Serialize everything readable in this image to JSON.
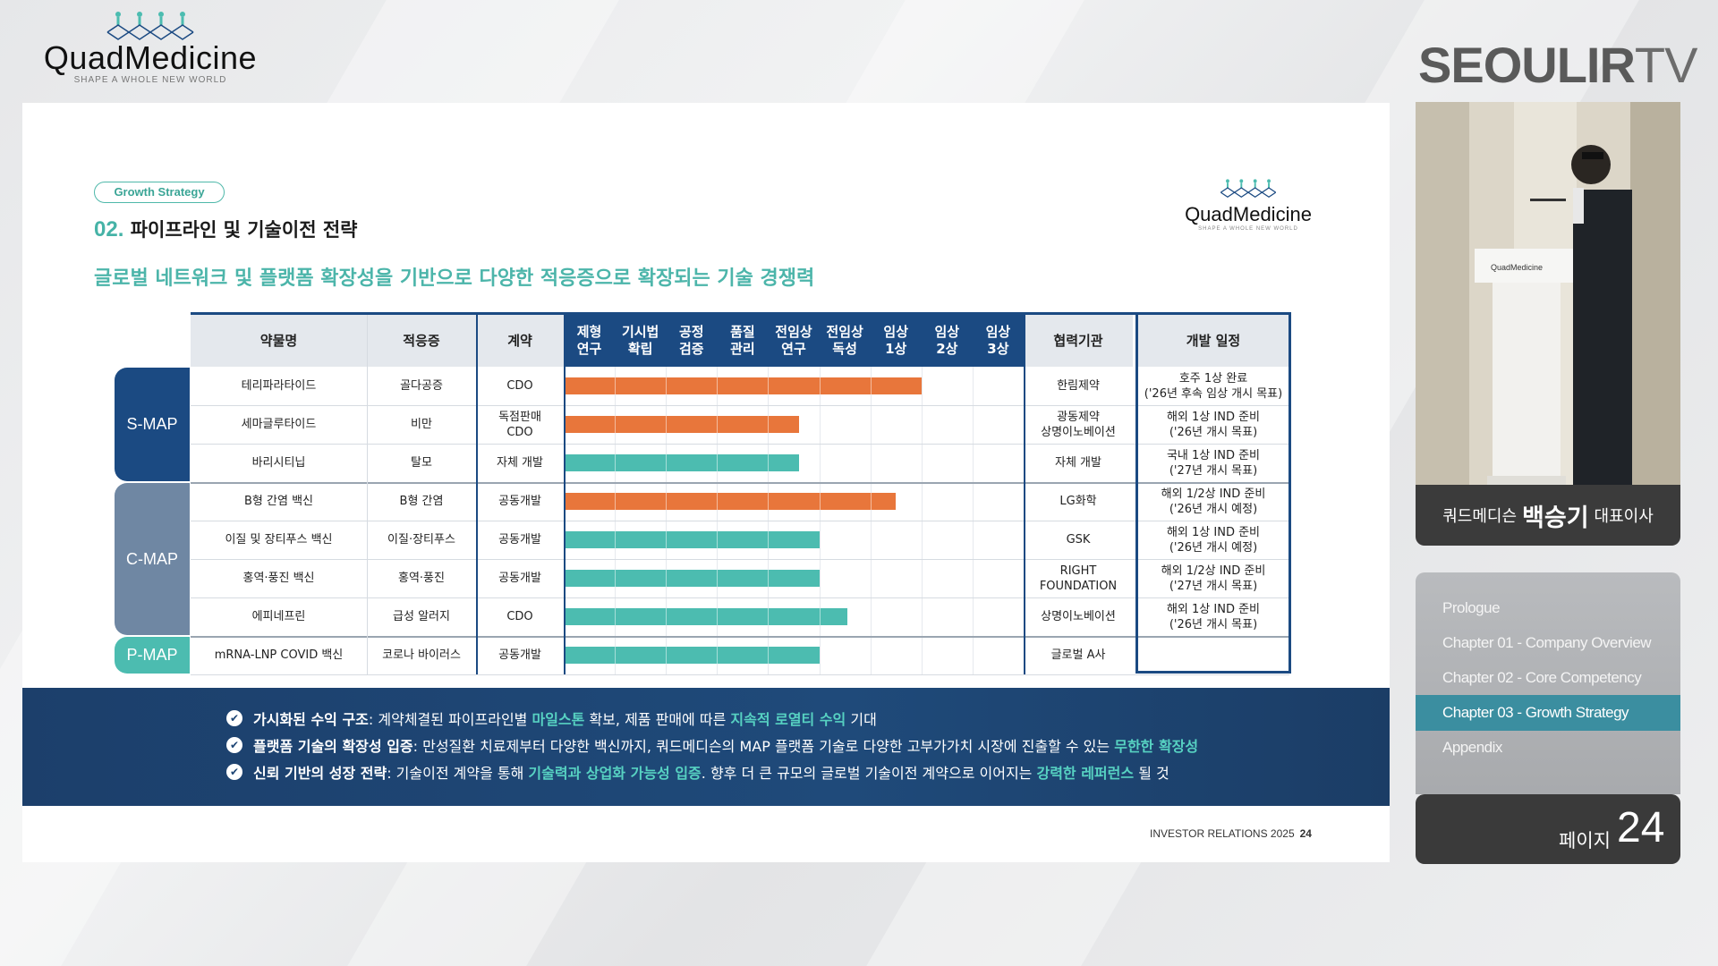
{
  "header": {
    "logo_name": "QuadMedicine",
    "logo_tagline": "SHAPE A WHOLE NEW WORLD",
    "channel_bold": "SEOULIR",
    "channel_light": "TV"
  },
  "slide": {
    "badge": "Growth Strategy",
    "title_num": "02.",
    "title_text": "파이프라인 및 기술이전 전략",
    "subtitle": "글로벌 네트워크 및 플랫폼 확장성을 기반으로 다양한 적응증으로 확장되는 기술 경쟁력",
    "logo_name": "QuadMedicine",
    "logo_tagline": "SHAPE A WHOLE NEW WORLD",
    "table": {
      "headers": {
        "drug": "약물명",
        "indication": "적응증",
        "contract": "계약",
        "stages": [
          "제형\n연구",
          "기시법\n확립",
          "공정\n검증",
          "품질\n관리",
          "전임상\n연구",
          "전임상\n독성",
          "임상\n1상",
          "임상\n2상",
          "임상\n3상"
        ],
        "partner": "협력기관",
        "schedule": "개발 일정"
      },
      "groups": [
        {
          "label": "S-MAP",
          "color": "#1b4a82"
        },
        {
          "label": "C-MAP",
          "color": "#6f87a3"
        },
        {
          "label": "P-MAP",
          "color": "#4cbcb0"
        }
      ],
      "rows": [
        {
          "drug": "테리파라타이드",
          "indication": "골다공증",
          "contract": "CDO",
          "partner": "한림제약",
          "schedule": "호주 1상 완료\n('26년 후속 임상 개시 목표)",
          "progress": 7.0,
          "color": "orange"
        },
        {
          "drug": "세마글루타이드",
          "indication": "비만",
          "contract": "독점판매\nCDO",
          "partner": "광동제약\n상명이노베이션",
          "schedule": "해외 1상 IND 준비\n('26년 개시 목표)",
          "progress": 4.6,
          "color": "orange"
        },
        {
          "drug": "바리시티닙",
          "indication": "탈모",
          "contract": "자체 개발",
          "partner": "자체 개발",
          "schedule": "국내 1상 IND 준비\n('27년 개시 목표)",
          "progress": 4.6,
          "color": "teal"
        },
        {
          "drug": "B형 간염 백신",
          "indication": "B형 간염",
          "contract": "공동개발",
          "partner": "LG화학",
          "schedule": "해외 1/2상 IND 준비\n('26년 개시 예정)",
          "progress": 6.5,
          "color": "orange"
        },
        {
          "drug": "이질 및 장티푸스 백신",
          "indication": "이질·장티푸스",
          "contract": "공동개발",
          "partner": "GSK",
          "schedule": "해외 1상 IND 준비\n('26년 개시 예정)",
          "progress": 5.0,
          "color": "teal"
        },
        {
          "drug": "홍역·풍진 백신",
          "indication": "홍역·풍진",
          "contract": "공동개발",
          "partner": "RIGHT\nFOUNDATION",
          "schedule": "해외 1/2상 IND 준비\n('27년 개시 목표)",
          "progress": 5.0,
          "color": "teal"
        },
        {
          "drug": "에피네프린",
          "indication": "급성 알러지",
          "contract": "CDO",
          "partner": "상명이노베이션",
          "schedule": "해외 1상 IND 준비\n('26년 개시 목표)",
          "progress": 5.55,
          "color": "teal"
        },
        {
          "drug": "mRNA-LNP COVID 백신",
          "indication": "코로나 바이러스",
          "contract": "공동개발",
          "partner": "글로벌 A사",
          "schedule": "",
          "progress": 5.0,
          "color": "teal"
        }
      ]
    },
    "summary": [
      {
        "bold": "가시화된 수익 구조",
        "pre": ": 계약체결된 파이프라인별 ",
        "hl1": "마일스톤",
        "mid": " 확보, 제품 판매에 따른 ",
        "hl2": "지속적 로열티 수익",
        "post": " 기대"
      },
      {
        "bold": "플랫폼 기술의 확장성 입증",
        "pre": ": 만성질환 치료제부터 다양한 백신까지, 쿼드메디슨의 MAP 플랫폼 기술로 다양한 고부가가치 시장에 진출할 수 있는 ",
        "hl1": "무한한 확장성",
        "mid": "",
        "hl2": "",
        "post": ""
      },
      {
        "bold": "신뢰 기반의 성장 전략",
        "pre": ": 기술이전 계약을 통해 ",
        "hl1": "기술력과 상업화 가능성 입증",
        "mid": ". 향후 더 큰 규모의 글로벌 기술이전 계약으로 이어지는 ",
        "hl2": "강력한 레퍼런스",
        "post": " 될 것"
      }
    ],
    "footer_label": "INVESTOR RELATIONS 2025",
    "footer_page": "24"
  },
  "speaker": {
    "company": "쿼드메디슨",
    "name": "백승기",
    "title": "대표이사",
    "podium_logo": "QuadMedicine"
  },
  "chapters": [
    {
      "label": "Prologue",
      "active": false
    },
    {
      "label": "Chapter 01 - Company Overview",
      "active": false
    },
    {
      "label": "Chapter 02 - Core Competency",
      "active": false
    },
    {
      "label": "Chapter 03 - Growth Strategy",
      "active": true
    },
    {
      "label": "Appendix",
      "active": false
    }
  ],
  "page": {
    "label": "페이지",
    "number": "24"
  },
  "colors": {
    "orange": "#e8763b",
    "teal": "#4cbcb0",
    "navy": "#1b4a82",
    "accent": "#46b3a7"
  }
}
